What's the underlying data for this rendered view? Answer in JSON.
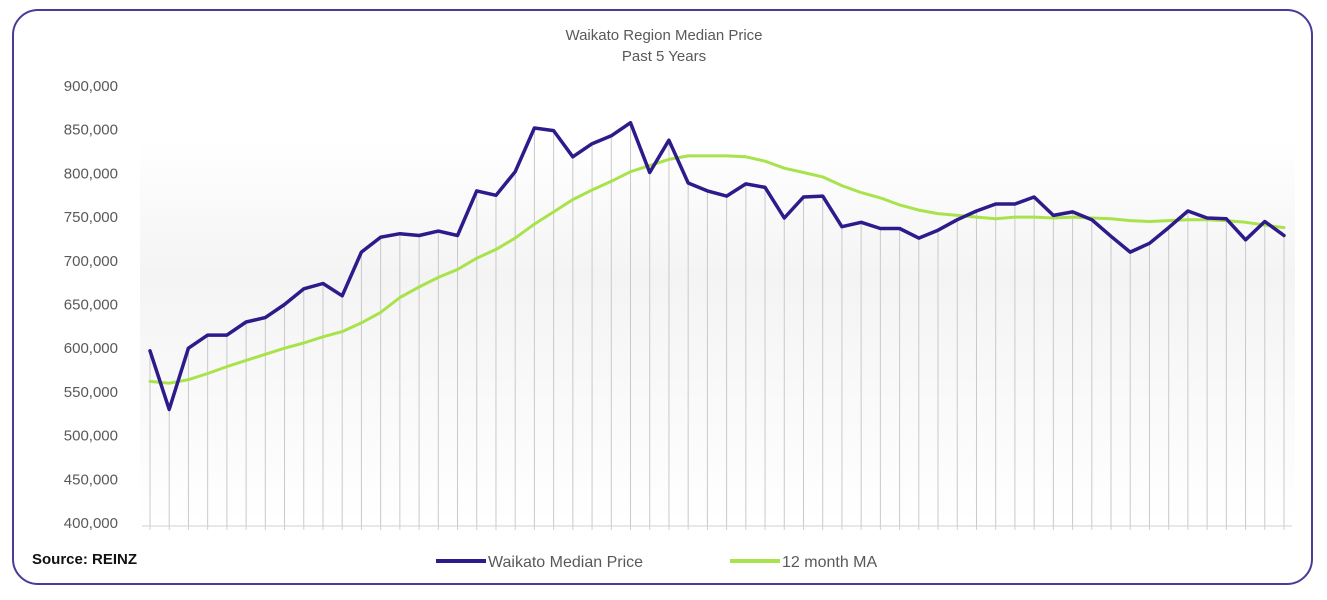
{
  "colors": {
    "frame": "#4a3a9a",
    "median": "#2e1a8a",
    "ma": "#a9e34b",
    "dropline": "#c9c9c9",
    "axis_text": "#595959",
    "title_text": "#595959"
  },
  "source": "Source: REINZ",
  "chart_data": {
    "type": "line",
    "title": "Waikato Region Median Price",
    "subtitle": "Past 5 Years",
    "xlabel": "",
    "ylabel": "",
    "ylim": [
      400000,
      900000
    ],
    "yticks": [
      400000,
      450000,
      500000,
      550000,
      600000,
      650000,
      700000,
      750000,
      800000,
      850000,
      900000
    ],
    "ytick_labels": [
      "400,000",
      "450,000",
      "500,000",
      "550,000",
      "600,000",
      "650,000",
      "700,000",
      "750,000",
      "800,000",
      "850,000",
      "900,000"
    ],
    "grid": false,
    "legend_position": "bottom-center",
    "series": [
      {
        "name": "Waikato Median Price",
        "color": "#2e1a8a",
        "values": [
          597000,
          530000,
          600000,
          615000,
          615000,
          630000,
          635000,
          650000,
          668000,
          674000,
          660000,
          710000,
          727000,
          731000,
          729000,
          734000,
          729000,
          780000,
          775000,
          802000,
          852000,
          849000,
          819000,
          834000,
          843000,
          858000,
          801000,
          838000,
          789000,
          780000,
          774000,
          788000,
          784000,
          749000,
          773000,
          774000,
          739000,
          744000,
          737000,
          737000,
          726000,
          735000,
          747000,
          757000,
          765000,
          765000,
          773000,
          752000,
          756000,
          747000,
          728000,
          710000,
          720000,
          738000,
          757000,
          749000,
          748000,
          724000,
          745000,
          729000
        ]
      },
      {
        "name": "12 month MA",
        "color": "#a9e34b",
        "values": [
          562000,
          560000,
          564000,
          571000,
          579000,
          586000,
          593000,
          600000,
          606000,
          613000,
          619000,
          629000,
          641000,
          658000,
          670000,
          681000,
          690000,
          703000,
          713000,
          726000,
          742000,
          756000,
          770000,
          781000,
          791000,
          802000,
          809000,
          816000,
          820000,
          820000,
          820000,
          819000,
          814000,
          806000,
          801000,
          796000,
          786000,
          778000,
          772000,
          764000,
          758000,
          754000,
          752000,
          750000,
          748000,
          750000,
          750000,
          749000,
          750000,
          749000,
          748000,
          746000,
          745000,
          746000,
          747000,
          747000,
          746000,
          744000,
          741000,
          738000
        ]
      }
    ]
  }
}
